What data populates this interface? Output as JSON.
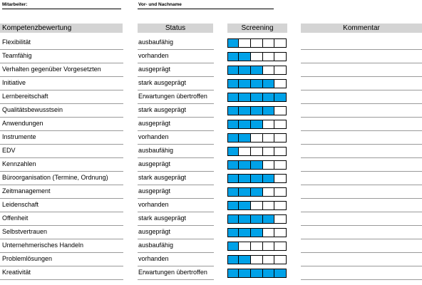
{
  "header": {
    "employee_label": "Mitarbeiter:",
    "name_label": "Vor- und Nachname"
  },
  "table": {
    "col_competency": "Kompetenzbewertung",
    "col_status": "Status",
    "col_screening": "Screening",
    "col_comment": "Kommentar",
    "screening_max": 5,
    "fill_color": "#00a2e8",
    "rows": [
      {
        "competency": "Flexibilität",
        "status": "ausbaufähig",
        "level": 1
      },
      {
        "competency": "Teamfähig",
        "status": "vorhanden",
        "level": 2
      },
      {
        "competency": "Verhalten gegenüber Vorgesetzten",
        "status": "ausgeprägt",
        "level": 3
      },
      {
        "competency": "Initiative",
        "status": "stark ausgeprägt",
        "level": 4
      },
      {
        "competency": "Lernbereitschaft",
        "status": "Erwartungen übertroffen",
        "level": 5
      },
      {
        "competency": "Qualitätsbewusstsein",
        "status": "stark ausgeprägt",
        "level": 4
      },
      {
        "competency": "Anwendungen",
        "status": "ausgeprägt",
        "level": 3
      },
      {
        "competency": "Instrumente",
        "status": "vorhanden",
        "level": 2
      },
      {
        "competency": "EDV",
        "status": "ausbaufähig",
        "level": 1
      },
      {
        "competency": "Kennzahlen",
        "status": "ausgeprägt",
        "level": 3
      },
      {
        "competency": "Büroorganisation (Termine, Ordnung)",
        "status": "stark ausgeprägt",
        "level": 4
      },
      {
        "competency": "Zeitmanagement",
        "status": "ausgeprägt",
        "level": 3
      },
      {
        "competency": "Leidenschaft",
        "status": "vorhanden",
        "level": 2
      },
      {
        "competency": "Offenheit",
        "status": "stark ausgeprägt",
        "level": 4
      },
      {
        "competency": "Selbstvertrauen",
        "status": "ausgeprägt",
        "level": 3
      },
      {
        "competency": "Unternehmerisches Handeln",
        "status": "ausbaufähig",
        "level": 1
      },
      {
        "competency": "Problemlösungen",
        "status": "vorhanden",
        "level": 2
      },
      {
        "competency": "Kreativität",
        "status": "Erwartungen übertroffen",
        "level": 5
      }
    ]
  }
}
